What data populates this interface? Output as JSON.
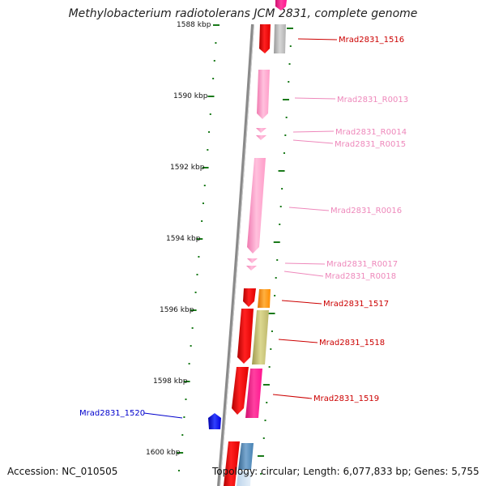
{
  "title": "Methylobacterium radiotolerans JCM 2831, complete genome",
  "accession": "Accession: NC_010505",
  "topology": "Topology: circular; Length: 6,077,833 bp; Genes: 5,755",
  "scale_labels": [
    "1588 kbp",
    "1590 kbp",
    "1592 kbp",
    "1594 kbp",
    "1596 kbp",
    "1598 kbp",
    "1600 kbp"
  ],
  "gene_labels": [
    {
      "name": "Mrad2831_1516",
      "color": "#cc0000"
    },
    {
      "name": "Mrad2831_R0013",
      "color": "#ee88bb"
    },
    {
      "name": "Mrad2831_R0014",
      "color": "#ee88bb"
    },
    {
      "name": "Mrad2831_R0015",
      "color": "#ee88bb"
    },
    {
      "name": "Mrad2831_R0016",
      "color": "#ee88bb"
    },
    {
      "name": "Mrad2831_R0017",
      "color": "#ee88bb"
    },
    {
      "name": "Mrad2831_R0018",
      "color": "#ee88bb"
    },
    {
      "name": "Mrad2831_1517",
      "color": "#cc0000"
    },
    {
      "name": "Mrad2831_1518",
      "color": "#cc0000"
    },
    {
      "name": "Mrad2831_1519",
      "color": "#cc0000"
    },
    {
      "name": "Mrad2831_1520",
      "color": "#0000cc"
    }
  ],
  "colors": {
    "backbone": "#888888",
    "scale_ticks": "#1a7a1a",
    "cds_red": "#ff0000",
    "rna_pink": "#ff99cc",
    "cds_magenta": "#ff1493",
    "cds_gray": "#b8b8b8",
    "cds_orange": "#ff8c00",
    "cds_khaki": "#bdb76b",
    "cds_blue": "#0000ff",
    "cds_steelblue": "#4682b4"
  }
}
